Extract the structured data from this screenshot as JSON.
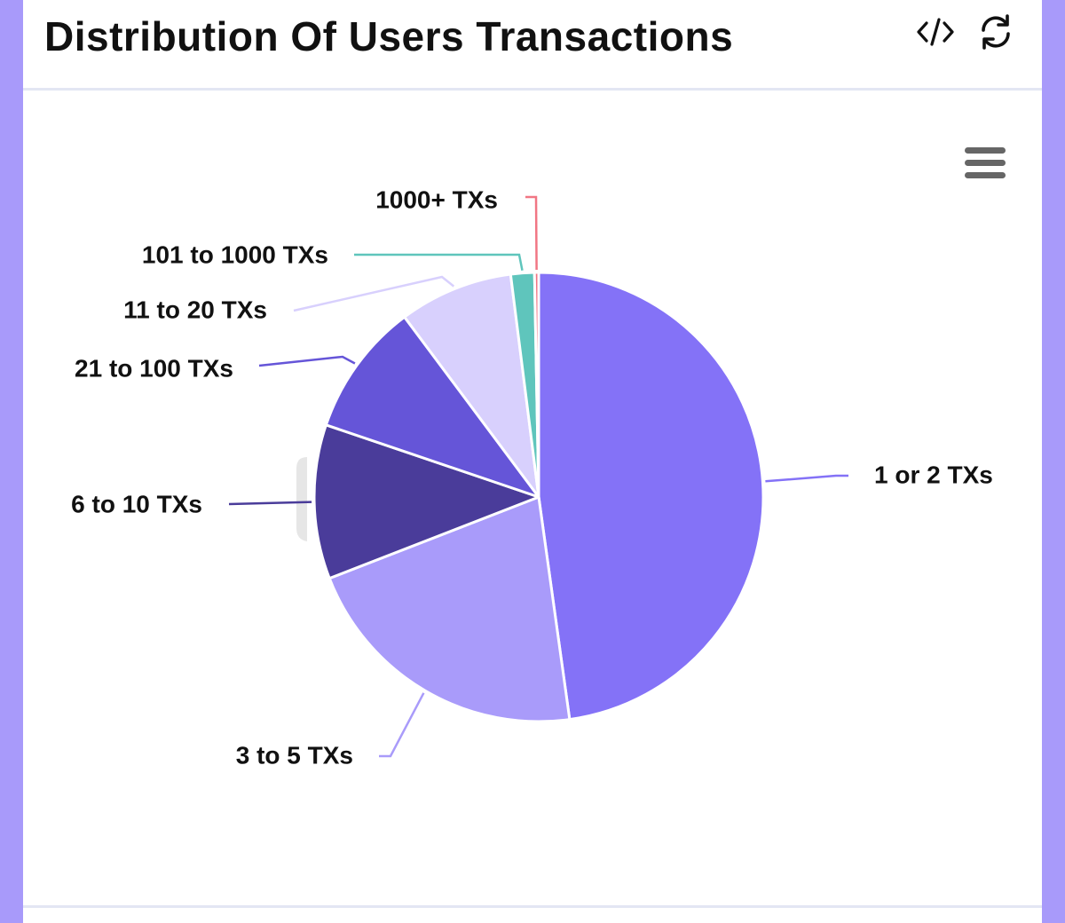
{
  "header": {
    "title": "Distribution Of Users Transactions",
    "icons": [
      "code-icon",
      "refresh-icon"
    ]
  },
  "chart_menu": {
    "icon": "hamburger-menu-icon"
  },
  "chart_data": {
    "type": "pie",
    "title": "Distribution Of Users Transactions",
    "slices": [
      {
        "label": "1 or 2 TXs",
        "value": 47.8,
        "color": "#8472f7"
      },
      {
        "label": "3 to 5 TXs",
        "value": 21.3,
        "color": "#a99bfa"
      },
      {
        "label": "6 to 10 TXs",
        "value": 11.1,
        "color": "#4a3c9a"
      },
      {
        "label": "21 to 100 TXs",
        "value": 9.6,
        "color": "#6555d8"
      },
      {
        "label": "11 to 20 TXs",
        "value": 8.2,
        "color": "#d8d0fd"
      },
      {
        "label": "101 to 1000 TXs",
        "value": 1.7,
        "color": "#5fc5bc"
      },
      {
        "label": "1000+ TXs",
        "value": 0.3,
        "color": "#f17684"
      }
    ]
  }
}
